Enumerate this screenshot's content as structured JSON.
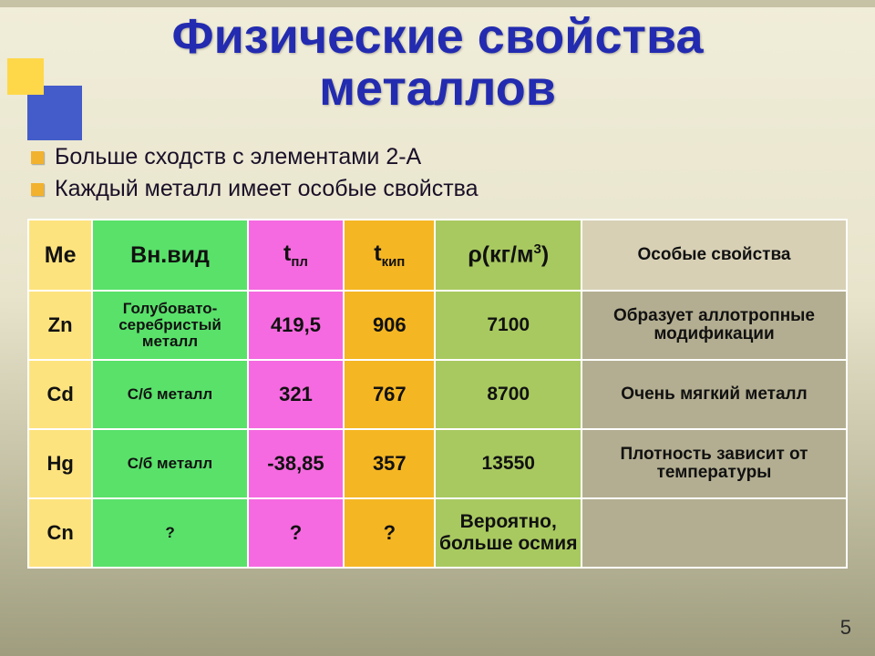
{
  "title_line1": "Физические свойства",
  "title_line2": "металлов",
  "bullet1": "Больше сходств с элементами 2-А",
  "bullet2": "Каждый металл имеет особые свойства",
  "page_number": "5",
  "colors": {
    "accent_title": "#232bb0",
    "bullet_square": "#f2b22e",
    "deco_yellow": "#ffd84a",
    "deco_blue": "#3b54c9",
    "col_me": "#fde37e",
    "col_look": "#59e16a",
    "col_tpl": "#f56ae0",
    "col_tkip": "#f5b623",
    "col_rho": "#a8c960",
    "col_prop_header": "#d7d0b5",
    "col_prop_body": "#b3ae91"
  },
  "table": {
    "headers": {
      "me": "Ме",
      "look": "Вн.вид",
      "tpl_pre": "t",
      "tpl_sub": "пл",
      "tkip_pre": "t",
      "tkip_sub": "кип",
      "rho_pre": "ρ(кг/м",
      "rho_sup": "3",
      "rho_post": ")",
      "prop": "Особые свойства"
    },
    "rows": [
      {
        "me": "Zn",
        "look": "Голубовато-серебристый металл",
        "tpl": "419,5",
        "tkip": "906",
        "rho": "7100",
        "prop": "Образует аллотропные модификации"
      },
      {
        "me": "Cd",
        "look": "С/б металл",
        "tpl": "321",
        "tkip": "767",
        "rho": "8700",
        "prop": "Очень мягкий металл"
      },
      {
        "me": "Hg",
        "look": "С/б металл",
        "tpl": "-38,85",
        "tkip": "357",
        "rho": "13550",
        "prop": "Плотность зависит от температуры"
      },
      {
        "me": "Cn",
        "look": "?",
        "tpl": "?",
        "tkip": "?",
        "rho": "Вероятно, больше осмия",
        "prop": ""
      }
    ]
  }
}
